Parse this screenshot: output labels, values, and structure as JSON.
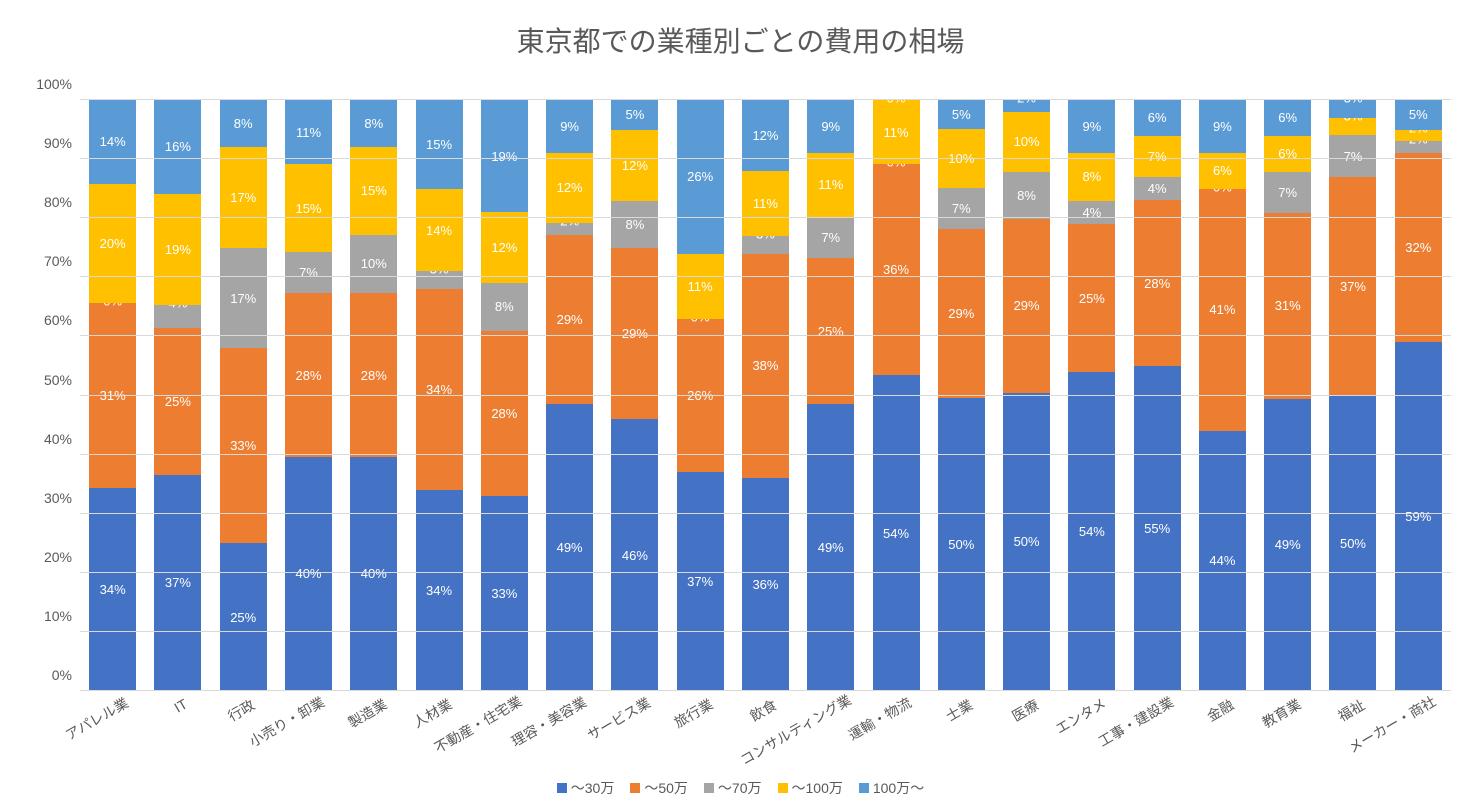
{
  "chart": {
    "type": "stacked-bar-100",
    "title": "東京都での業種別ごとの費用の相場",
    "title_fontsize": 28,
    "background_color": "#ffffff",
    "grid_color": "#d9d9d9",
    "text_color": "#595959",
    "label_fontsize": 14,
    "segment_label_fontsize": 13,
    "segment_label_color": "#ffffff",
    "ylim": [
      0,
      100
    ],
    "ytick_step": 10,
    "y_ticks": [
      "0%",
      "10%",
      "20%",
      "30%",
      "40%",
      "50%",
      "60%",
      "70%",
      "80%",
      "90%",
      "100%"
    ],
    "series": [
      {
        "key": "s1",
        "label": "～30万",
        "color": "#4472c4"
      },
      {
        "key": "s2",
        "label": "～50万",
        "color": "#ed7d31"
      },
      {
        "key": "s3",
        "label": "～70万",
        "color": "#a5a5a5"
      },
      {
        "key": "s4",
        "label": "～100万",
        "color": "#ffc000"
      },
      {
        "key": "s5",
        "label": "100万～",
        "color": "#5b9bd5"
      }
    ],
    "categories": [
      {
        "label": "アパレル業",
        "values": [
          34,
          31,
          0,
          20,
          14
        ],
        "display": [
          "34%",
          "31%",
          "0%",
          "20%",
          "14%"
        ]
      },
      {
        "label": "IT",
        "values": [
          37,
          25,
          4,
          19,
          16
        ],
        "display": [
          "37%",
          "25%",
          "4%",
          "19%",
          "16%"
        ]
      },
      {
        "label": "行政",
        "values": [
          25,
          33,
          17,
          17,
          8
        ],
        "display": [
          "25%",
          "33%",
          "17%",
          "17%",
          "8%"
        ]
      },
      {
        "label": "小売り・卸業",
        "values": [
          40,
          28,
          7,
          15,
          11
        ],
        "display": [
          "40%",
          "28%",
          "7%",
          "15%",
          "11%"
        ]
      },
      {
        "label": "製造業",
        "values": [
          40,
          28,
          10,
          15,
          8
        ],
        "display": [
          "40%",
          "28%",
          "10%",
          "15%",
          "8%"
        ]
      },
      {
        "label": "人材業",
        "values": [
          34,
          34,
          3,
          14,
          15
        ],
        "display": [
          "34%",
          "34%",
          "3%",
          "14%",
          "15%"
        ]
      },
      {
        "label": "不動産・住宅業",
        "values": [
          33,
          28,
          8,
          12,
          19
        ],
        "display": [
          "33%",
          "28%",
          "8%",
          "12%",
          "19%"
        ]
      },
      {
        "label": "理容・美容業",
        "values": [
          49,
          29,
          2,
          12,
          9
        ],
        "display": [
          "49%",
          "29%",
          "2%",
          "12%",
          "9%"
        ]
      },
      {
        "label": "サービス業",
        "values": [
          46,
          29,
          8,
          12,
          5
        ],
        "display": [
          "46%",
          "29%",
          "8%",
          "12%",
          "5%"
        ]
      },
      {
        "label": "旅行業",
        "values": [
          37,
          26,
          0,
          11,
          26
        ],
        "display": [
          "37%",
          "26%",
          "0%",
          "11%",
          "26%"
        ]
      },
      {
        "label": "飲食",
        "values": [
          36,
          38,
          3,
          11,
          12
        ],
        "display": [
          "36%",
          "38%",
          "3%",
          "11%",
          "12%"
        ]
      },
      {
        "label": "コンサルティング業",
        "values": [
          49,
          25,
          7,
          11,
          9
        ],
        "display": [
          "49%",
          "25%",
          "7%",
          "11%",
          "9%"
        ]
      },
      {
        "label": "運輸・物流",
        "values": [
          54,
          36,
          0,
          11,
          0
        ],
        "display": [
          "54%",
          "36%",
          "0%",
          "11%",
          "0%"
        ]
      },
      {
        "label": "士業",
        "values": [
          50,
          29,
          7,
          10,
          5
        ],
        "display": [
          "50%",
          "29%",
          "7%",
          "10%",
          "5%"
        ]
      },
      {
        "label": "医療",
        "values": [
          50,
          29,
          8,
          10,
          2
        ],
        "display": [
          "50%",
          "29%",
          "8%",
          "10%",
          "2%"
        ]
      },
      {
        "label": "エンタメ",
        "values": [
          54,
          25,
          4,
          8,
          9
        ],
        "display": [
          "54%",
          "25%",
          "4%",
          "8%",
          "9%"
        ]
      },
      {
        "label": "工事・建設業",
        "values": [
          55,
          28,
          4,
          7,
          6
        ],
        "display": [
          "55%",
          "28%",
          "4%",
          "7%",
          "6%"
        ]
      },
      {
        "label": "金融",
        "values": [
          44,
          41,
          0,
          6,
          9
        ],
        "display": [
          "44%",
          "41%",
          "0%",
          "6%",
          "9%"
        ]
      },
      {
        "label": "教育業",
        "values": [
          49,
          31,
          7,
          6,
          6
        ],
        "display": [
          "49%",
          "31%",
          "7%",
          "6%",
          "6%"
        ]
      },
      {
        "label": "福祉",
        "values": [
          50,
          37,
          7,
          3,
          3
        ],
        "display": [
          "50%",
          "37%",
          "7%",
          "3%",
          "3%"
        ]
      },
      {
        "label": "メーカー・商社",
        "values": [
          59,
          32,
          2,
          2,
          5
        ],
        "display": [
          "59%",
          "32%",
          "2%",
          "2%",
          "5%"
        ]
      }
    ]
  }
}
